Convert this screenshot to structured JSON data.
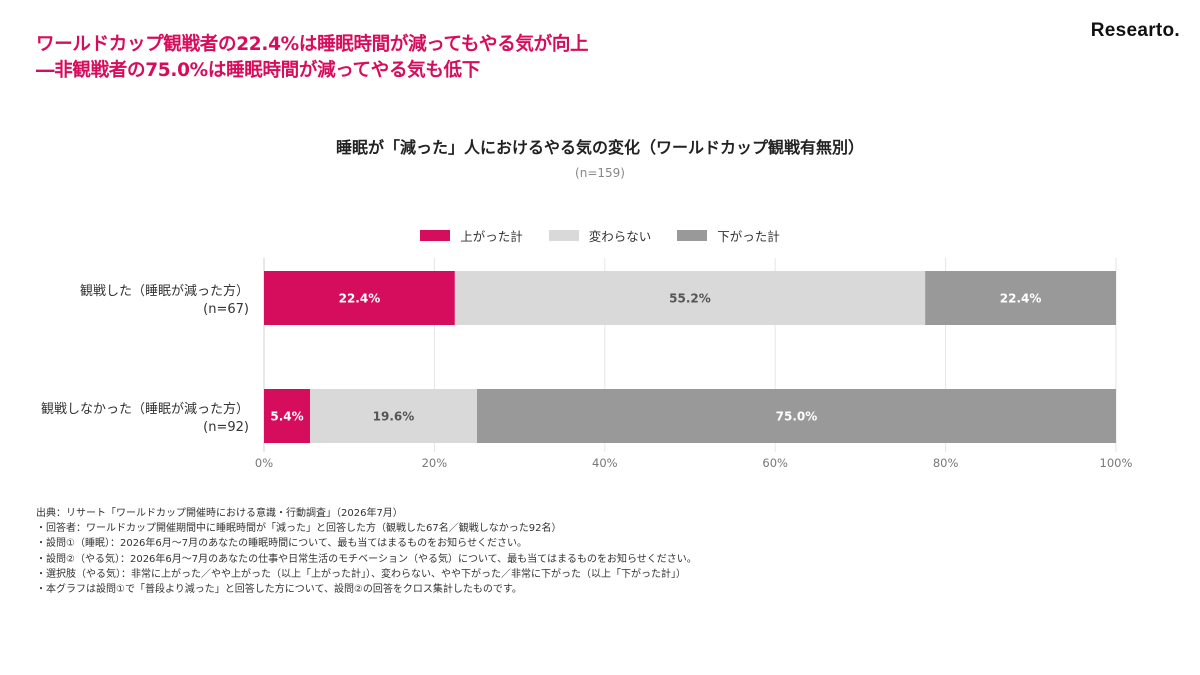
{
  "headline": {
    "line1": "ワールドカップ観戦者の22.4%は睡眠時間が減ってもやる気が向上",
    "line2": "―非観戦者の75.0%は睡眠時間が減ってやる気も低下"
  },
  "brand": "Researto.",
  "colors": {
    "accent": "#d60d5c",
    "up": "#d60d5c",
    "same": "#d9d9d9",
    "down": "#999999"
  },
  "chart_data": {
    "type": "bar",
    "orientation": "horizontal",
    "stacked": true,
    "title": "睡眠が「減った」人におけるやる気の変化（ワールドカップ観戦有無別）",
    "subtitle": "(n=159)",
    "categories": [
      {
        "label": "観戦した（睡眠が減った方）",
        "n": "(n=67)"
      },
      {
        "label": "観戦しなかった（睡眠が減った方）",
        "n": "(n=92)"
      }
    ],
    "series": [
      {
        "name": "上がった計",
        "values": [
          22.4,
          5.4
        ],
        "labels": [
          "22.4%",
          "5.4%"
        ],
        "color": "#d60d5c",
        "label_color": "#ffffff"
      },
      {
        "name": "変わらない",
        "values": [
          55.2,
          19.6
        ],
        "labels": [
          "55.2%",
          "19.6%"
        ],
        "color": "#d9d9d9",
        "label_color": "#555555"
      },
      {
        "name": "下がった計",
        "values": [
          22.4,
          75.0
        ],
        "labels": [
          "22.4%",
          "75.0%"
        ],
        "color": "#999999",
        "label_color": "#ffffff"
      }
    ],
    "xlim": [
      0,
      100
    ],
    "x_ticks": [
      {
        "value": 0,
        "label": "0%"
      },
      {
        "value": 20,
        "label": "20%"
      },
      {
        "value": 40,
        "label": "40%"
      },
      {
        "value": 60,
        "label": "60%"
      },
      {
        "value": 80,
        "label": "80%"
      },
      {
        "value": 100,
        "label": "100%"
      }
    ],
    "grid": true,
    "legend_position": "top-center"
  },
  "footnotes": [
    "出典：リサート「ワールドカップ開催時における意識・行動調査」（2026年7月）",
    "・回答者：ワールドカップ開催期間中に睡眠時間が「減った」と回答した方（観戦した67名／観戦しなかった92名）",
    "・設問①（睡眠）：2026年6月〜7月のあなたの睡眠時間について、最も当てはまるものをお知らせください。",
    "・設問②（やる気）：2026年6月〜7月のあなたの仕事や日常生活のモチベーション（やる気）について、最も当てはまるものをお知らせください。",
    "・選択肢（やる気）：非常に上がった／やや上がった（以上「上がった計」）、変わらない、やや下がった／非常に下がった（以上「下がった計」）",
    "・本グラフは設問①で「普段より減った」と回答した方について、設問②の回答をクロス集計したものです。"
  ]
}
